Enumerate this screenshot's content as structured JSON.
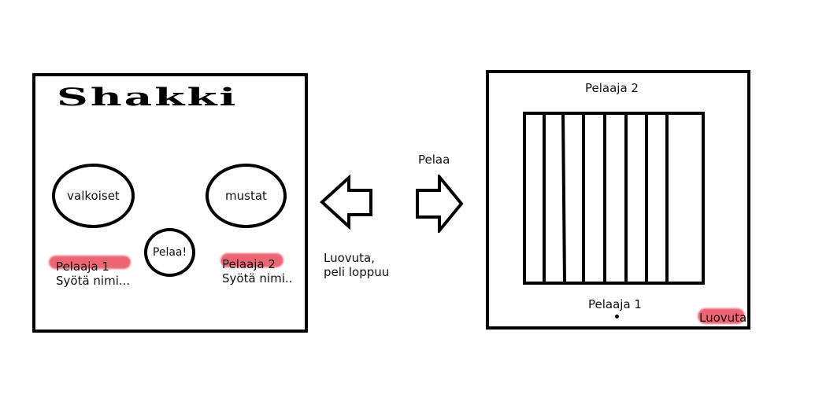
{
  "start_view": {
    "title": "Shakki",
    "white_option": "valkoiset",
    "black_option": "mustat",
    "play_button": "Pelaa!",
    "player1_label": "Pelaaja 1",
    "player1_input_hint": "Syötä nimi...",
    "player2_label": "Pelaaja 2",
    "player2_input_hint": "Syötä nimi.."
  },
  "transitions": {
    "forward_label": "Pelaa",
    "back_label_line1": "Luovuta,",
    "back_label_line2": "peli loppuu"
  },
  "game_view": {
    "top_player": "Pelaaja 2",
    "bottom_player": "Pelaaja 1",
    "resign_button": "Luovuta"
  },
  "colors": {
    "highlight": "#ea4b5b",
    "outline": "#000000"
  }
}
